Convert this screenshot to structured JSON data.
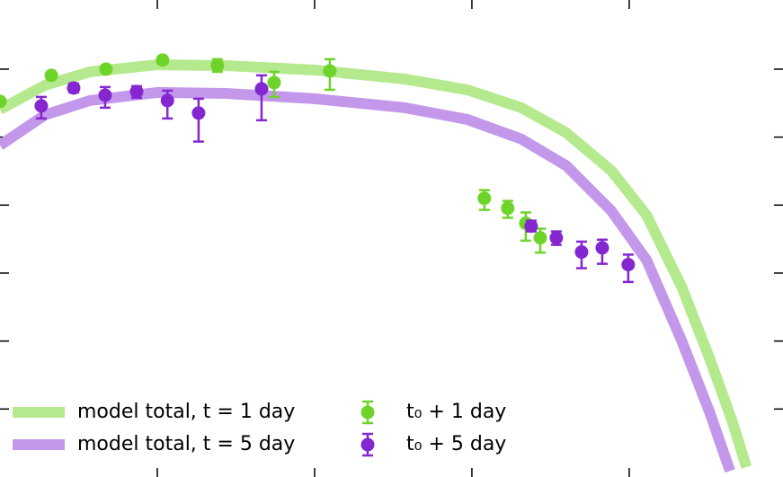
{
  "chart_data": {
    "type": "scatter",
    "xscale": "log",
    "yscale": "log",
    "xlim": [
      0.1,
      9500
    ],
    "ylim": [
      1e-06,
      10.4
    ],
    "xticks": [
      1,
      10,
      100,
      1000
    ],
    "yticks": [
      1,
      0.1,
      0.01,
      0.001,
      0.0001,
      1e-05
    ],
    "series": [
      {
        "name": "model total, t = 1 day",
        "mode": "line",
        "color": "#b5e98d",
        "x": [
          0.1,
          0.193,
          0.373,
          1,
          2.68,
          10,
          37.3,
          93.3,
          206,
          398,
          768,
          1290,
          2160,
          3250,
          4520,
          5560
        ],
        "values": [
          0.255,
          0.58,
          0.913,
          1.16,
          1.13,
          0.97,
          0.716,
          0.497,
          0.271,
          0.116,
          0.0323,
          0.0071,
          0.00062,
          5.5e-05,
          6.6e-06,
          1.4e-06
        ]
      },
      {
        "name": "model total, t = 5 day",
        "mode": "line",
        "color": "#c397ea",
        "x": [
          0.1,
          0.193,
          0.373,
          1,
          2.68,
          10,
          37.3,
          93.3,
          206,
          398,
          768,
          1290,
          2160,
          3250,
          4370
        ],
        "values": [
          0.0757,
          0.212,
          0.345,
          0.454,
          0.44,
          0.367,
          0.271,
          0.182,
          0.0937,
          0.038,
          0.0083,
          0.00155,
          0.0001,
          8.9e-06,
          1.23e-06
        ]
      },
      {
        "name": "t₀ + 1 day",
        "mode": "errorbar",
        "color": "#6fd42a",
        "x": [
          0.1,
          0.212,
          0.472,
          1.08,
          2.41,
          5.53,
          12.5,
          120,
          169,
          220,
          272
        ],
        "values": [
          0.335,
          0.81,
          1.0,
          1.36,
          1.13,
          0.634,
          0.94,
          0.0126,
          0.009,
          0.0054,
          0.0033
        ],
        "err_low": [
          null,
          null,
          null,
          null,
          0.913,
          0.39,
          0.497,
          0.0085,
          0.0065,
          0.003,
          0.002
        ],
        "err_high": [
          null,
          null,
          null,
          null,
          1.4,
          0.913,
          1.4,
          0.0166,
          0.0115,
          0.0078,
          0.0045
        ]
      },
      {
        "name": "t₀ + 5 day",
        "mode": "errorbar",
        "color": "#8427d0",
        "x": [
          0.183,
          0.294,
          0.466,
          0.739,
          1.16,
          1.83,
          4.6,
          238,
          344,
          498,
          674,
          986
        ],
        "values": [
          0.288,
          0.528,
          0.414,
          0.468,
          0.345,
          0.226,
          0.513,
          0.0049,
          0.0033,
          0.00204,
          0.00235,
          0.00133
        ],
        "err_low": [
          0.188,
          0.454,
          0.271,
          0.378,
          0.188,
          0.086,
          0.177,
          0.0041,
          0.0026,
          0.00118,
          0.00137,
          0.00074
        ],
        "err_high": [
          0.39,
          0.615,
          0.545,
          0.561,
          0.482,
          0.367,
          0.81,
          0.0059,
          0.0041,
          0.0029,
          0.0031,
          0.00187
        ]
      }
    ]
  }
}
